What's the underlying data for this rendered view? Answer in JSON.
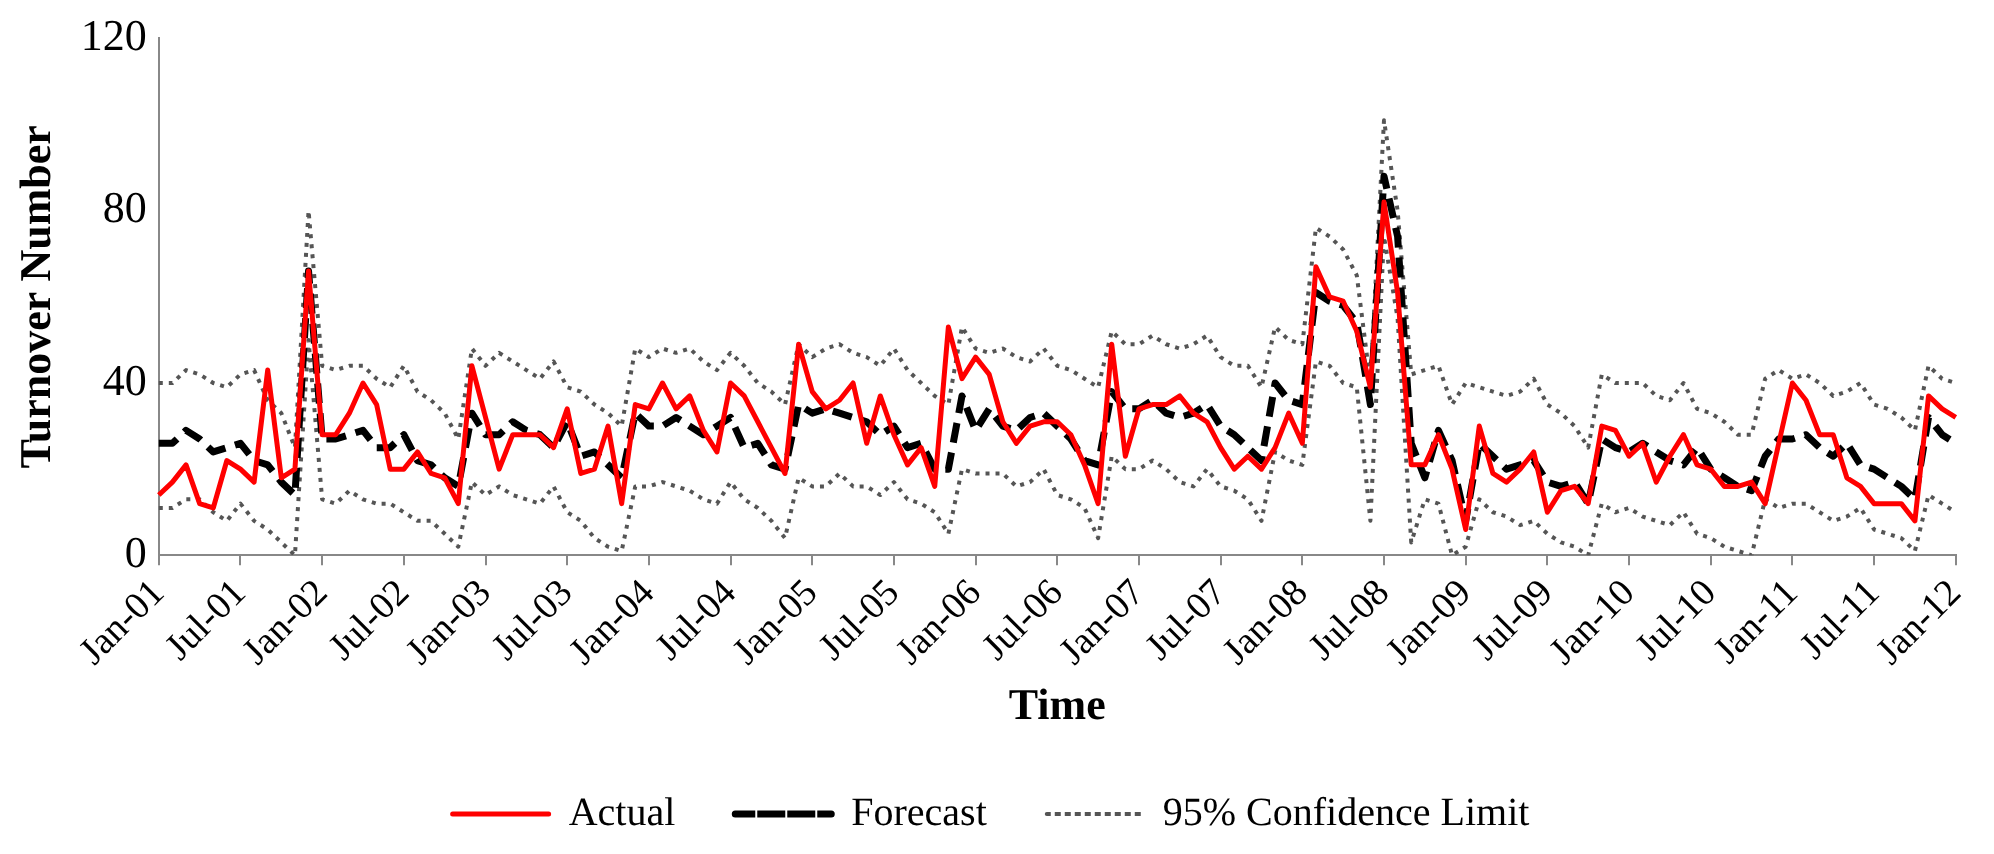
{
  "chart_data": {
    "type": "line",
    "xlabel": "Time",
    "ylabel": "Turnover Number",
    "categories": [
      "Jan-01",
      null,
      null,
      null,
      null,
      null,
      "Jul-01",
      null,
      null,
      null,
      null,
      null,
      "Jan-02",
      null,
      null,
      null,
      null,
      null,
      "Jul-02",
      null,
      null,
      null,
      null,
      null,
      "Jan-03",
      null,
      null,
      null,
      null,
      null,
      "Jul-03",
      null,
      null,
      null,
      null,
      null,
      "Jan-04",
      null,
      null,
      null,
      null,
      null,
      "Jul-04",
      null,
      null,
      null,
      null,
      null,
      "Jan-05",
      null,
      null,
      null,
      null,
      null,
      "Jul-05",
      null,
      null,
      null,
      null,
      null,
      "Jan-06",
      null,
      null,
      null,
      null,
      null,
      "Jul-06",
      null,
      null,
      null,
      null,
      null,
      "Jan-07",
      null,
      null,
      null,
      null,
      null,
      "Jul-07",
      null,
      null,
      null,
      null,
      null,
      "Jan-08",
      null,
      null,
      null,
      null,
      null,
      "Jul-08",
      null,
      null,
      null,
      null,
      null,
      "Jan-09",
      null,
      null,
      null,
      null,
      null,
      "Jul-09",
      null,
      null,
      null,
      null,
      null,
      "Jan-10",
      null,
      null,
      null,
      null,
      null,
      "Jul-10",
      null,
      null,
      null,
      null,
      null,
      "Jan-11",
      null,
      null,
      null,
      null,
      null,
      "Jul-11",
      null,
      null,
      null,
      null,
      null,
      "Jan-12"
    ],
    "series": [
      {
        "name": "Actual",
        "color": "#ff0000",
        "line_style": "solid",
        "values": [
          14,
          17,
          21,
          12,
          11,
          22,
          20,
          17,
          43,
          18,
          20,
          66,
          28,
          28,
          33,
          40,
          35,
          20,
          20,
          24,
          19,
          18,
          12,
          44,
          32,
          20,
          28,
          28,
          28,
          25,
          34,
          19,
          20,
          30,
          12,
          35,
          34,
          40,
          34,
          37,
          29,
          24,
          40,
          37,
          31,
          25,
          19,
          49,
          38,
          34,
          36,
          40,
          26,
          37,
          28,
          21,
          25,
          16,
          53,
          41,
          46,
          42,
          31,
          26,
          30,
          31,
          31,
          28,
          21,
          12,
          49,
          23,
          34,
          35,
          35,
          37,
          33,
          31,
          25,
          20,
          23,
          20,
          25,
          33,
          26,
          67,
          60,
          59,
          52,
          39,
          82,
          61,
          21,
          21,
          28,
          20,
          6,
          30,
          19,
          17,
          20,
          24,
          10,
          15,
          16,
          12,
          30,
          29,
          23,
          26,
          17,
          23,
          28,
          21,
          20,
          16,
          16,
          17,
          12,
          26,
          40,
          36,
          28,
          28,
          18,
          16,
          12,
          12,
          12,
          8,
          37,
          34,
          32
        ]
      },
      {
        "name": "Forecast",
        "color": "#000000",
        "line_style": "dashed",
        "values": [
          26,
          26,
          29,
          27,
          24,
          25,
          26,
          22,
          21,
          17,
          14,
          66,
          27,
          27,
          28,
          29,
          25,
          25,
          28,
          22,
          21,
          18,
          16,
          33,
          28,
          28,
          31,
          29,
          28,
          25,
          31,
          23,
          24,
          21,
          18,
          33,
          30,
          30,
          32,
          30,
          28,
          30,
          32,
          25,
          26,
          21,
          20,
          35,
          33,
          34,
          33,
          32,
          31,
          28,
          30,
          25,
          26,
          20,
          20,
          37,
          29,
          34,
          30,
          29,
          32,
          33,
          30,
          27,
          22,
          21,
          38,
          34,
          34,
          36,
          33,
          32,
          33,
          35,
          30,
          28,
          25,
          22,
          40,
          36,
          35,
          61,
          59,
          58,
          54,
          35,
          88,
          74,
          26,
          18,
          29,
          22,
          8,
          26,
          23,
          20,
          21,
          22,
          17,
          16,
          17,
          12,
          27,
          25,
          24,
          26,
          24,
          22,
          21,
          25,
          20,
          18,
          16,
          15,
          23,
          27,
          27,
          28,
          25,
          23,
          26,
          21,
          20,
          18,
          16,
          13,
          32,
          28,
          26
        ]
      },
      {
        "name": "95% Confidence Limit",
        "color": "#555555",
        "line_style": "dotted",
        "values": [
          40,
          40,
          43,
          42,
          40,
          39,
          42,
          43,
          36,
          33,
          25,
          80,
          44,
          43,
          44,
          44,
          41,
          39,
          44,
          38,
          36,
          33,
          27,
          48,
          44,
          47,
          45,
          43,
          41,
          45,
          39,
          38,
          35,
          33,
          30,
          48,
          46,
          48,
          47,
          48,
          45,
          43,
          47,
          44,
          40,
          38,
          35,
          49,
          46,
          48,
          49,
          47,
          46,
          44,
          48,
          43,
          40,
          37,
          35,
          53,
          48,
          47,
          48,
          46,
          45,
          48,
          44,
          43,
          41,
          39,
          52,
          49,
          49,
          51,
          49,
          48,
          49,
          51,
          46,
          44,
          44,
          39,
          53,
          50,
          49,
          76,
          74,
          71,
          65,
          40,
          101,
          80,
          42,
          43,
          44,
          35,
          40,
          39,
          38,
          37,
          38,
          41,
          35,
          33,
          30,
          25,
          42,
          40,
          40,
          40,
          37,
          36,
          40,
          34,
          33,
          31,
          28,
          28,
          41,
          43,
          41,
          42,
          40,
          37,
          38,
          40,
          35,
          34,
          32,
          29,
          44,
          41,
          40
        ]
      },
      {
        "color": "#555555",
        "line_style": "dotted",
        "values": [
          11,
          11,
          13,
          13,
          10,
          8,
          12,
          8,
          6,
          3,
          0,
          50,
          13,
          12,
          15,
          13,
          12,
          12,
          10,
          8,
          8,
          5,
          2,
          17,
          14,
          16,
          14,
          13,
          12,
          16,
          10,
          8,
          4,
          2,
          1,
          16,
          16,
          17,
          16,
          15,
          13,
          12,
          17,
          13,
          11,
          8,
          4,
          18,
          16,
          16,
          19,
          16,
          16,
          14,
          17,
          13,
          12,
          10,
          5,
          20,
          19,
          19,
          19,
          16,
          17,
          20,
          14,
          13,
          11,
          4,
          23,
          20,
          20,
          22,
          20,
          17,
          16,
          20,
          16,
          15,
          13,
          8,
          24,
          22,
          21,
          45,
          44,
          40,
          39,
          8,
          74,
          55,
          3,
          13,
          12,
          0,
          2,
          13,
          10,
          9,
          7,
          8,
          5,
          3,
          2,
          0,
          12,
          10,
          11,
          9,
          8,
          7,
          10,
          5,
          4,
          2,
          1,
          0,
          13,
          11,
          12,
          12,
          10,
          8,
          9,
          11,
          6,
          5,
          4,
          1,
          14,
          12,
          10
        ]
      }
    ],
    "ylim": [
      0,
      120
    ],
    "yticks": [
      0,
      40,
      80,
      120
    ],
    "grid": false,
    "legend": "bottom",
    "marker": "none"
  }
}
